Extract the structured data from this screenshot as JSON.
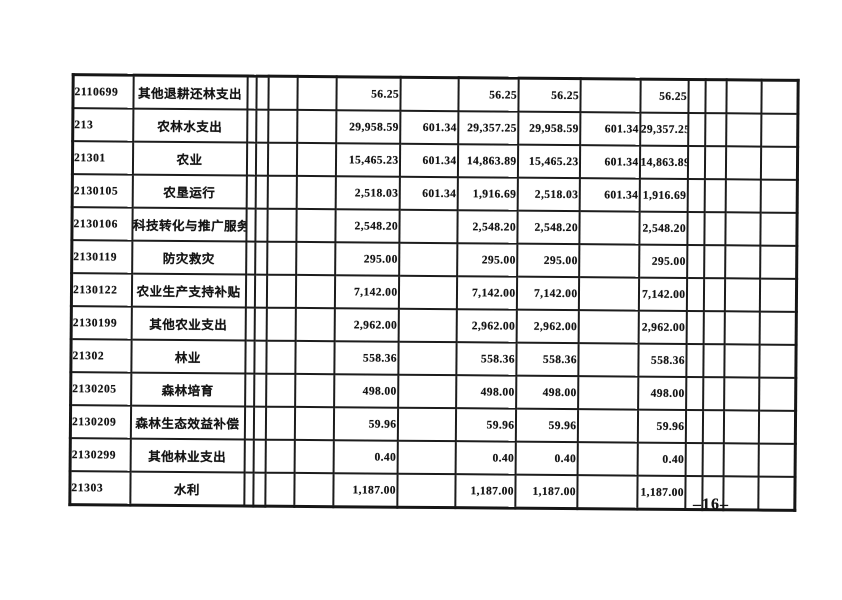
{
  "document": {
    "page_number": "–16–"
  },
  "table": {
    "rows": [
      {
        "code": "2110699",
        "name": "其他退耕还林支出",
        "values": [
          "56.25",
          "",
          "56.25",
          "56.25",
          "",
          "56.25"
        ]
      },
      {
        "code": "213",
        "name": "农林水支出",
        "values": [
          "29,958.59",
          "601.34",
          "29,357.25",
          "29,958.59",
          "601.34",
          "29,357.25"
        ]
      },
      {
        "code": "21301",
        "name": "农业",
        "values": [
          "15,465.23",
          "601.34",
          "14,863.89",
          "15,465.23",
          "601.34",
          "14,863.89"
        ]
      },
      {
        "code": "2130105",
        "name": "农垦运行",
        "values": [
          "2,518.03",
          "601.34",
          "1,916.69",
          "2,518.03",
          "601.34",
          "1,916.69"
        ]
      },
      {
        "code": "2130106",
        "name": "科技转化与推广服务",
        "values": [
          "2,548.20",
          "",
          "2,548.20",
          "2,548.20",
          "",
          "2,548.20"
        ]
      },
      {
        "code": "2130119",
        "name": "防灾救灾",
        "values": [
          "295.00",
          "",
          "295.00",
          "295.00",
          "",
          "295.00"
        ]
      },
      {
        "code": "2130122",
        "name": "农业生产支持补贴",
        "values": [
          "7,142.00",
          "",
          "7,142.00",
          "7,142.00",
          "",
          "7,142.00"
        ]
      },
      {
        "code": "2130199",
        "name": "其他农业支出",
        "values": [
          "2,962.00",
          "",
          "2,962.00",
          "2,962.00",
          "",
          "2,962.00"
        ]
      },
      {
        "code": "21302",
        "name": "林业",
        "values": [
          "558.36",
          "",
          "558.36",
          "558.36",
          "",
          "558.36"
        ]
      },
      {
        "code": "2130205",
        "name": "森林培育",
        "values": [
          "498.00",
          "",
          "498.00",
          "498.00",
          "",
          "498.00"
        ]
      },
      {
        "code": "2130209",
        "name": "森林生态效益补偿",
        "values": [
          "59.96",
          "",
          "59.96",
          "59.96",
          "",
          "59.96"
        ]
      },
      {
        "code": "2130299",
        "name": "其他林业支出",
        "values": [
          "0.40",
          "",
          "0.40",
          "0.40",
          "",
          "0.40"
        ]
      },
      {
        "code": "21303",
        "name": "水利",
        "values": [
          "1,187.00",
          "",
          "1,187.00",
          "1,187.00",
          "",
          "1,187.00"
        ]
      }
    ]
  }
}
